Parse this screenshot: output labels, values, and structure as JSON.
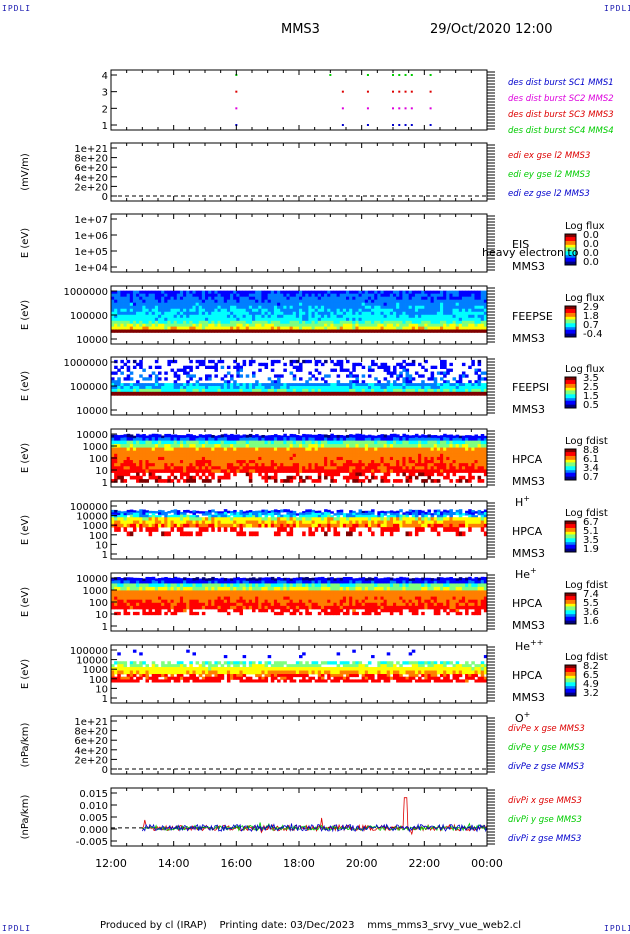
{
  "header": {
    "corner_label": "IPDLI",
    "spacecraft": "MMS3",
    "datetime": "29/Oct/2020 12:00"
  },
  "footer": {
    "produced_by": "Produced by cl (IRAP)",
    "printing_date": "Printing date: 03/Dec/2023",
    "script": "mms_mms3_srvy_vue_web2.cl"
  },
  "colors": {
    "red": "#dd0000",
    "green": "#00cc00",
    "blue": "#0000cc",
    "magenta": "#dd00dd",
    "colorbar": [
      "#00007f",
      "#0000ff",
      "#007fff",
      "#00ffff",
      "#7fff7f",
      "#ffff00",
      "#ff7f00",
      "#ff0000",
      "#7f0000"
    ]
  },
  "chart_data": {
    "type": "multi-panel time series and spectrograms",
    "xaxis": {
      "ticks": [
        "12:00",
        "14:00",
        "16:00",
        "18:00",
        "20:00",
        "22:00",
        "00:00"
      ],
      "range_hours": [
        12,
        24
      ]
    },
    "panels": [
      {
        "id": "burst",
        "type": "scatter",
        "ylabel": "",
        "ticks": [
          "4",
          "3",
          "2",
          "1"
        ],
        "ylim": [
          0.5,
          4.5
        ],
        "legend": [
          {
            "text": "des dist burst SC1 MMS1",
            "color": "#0000cc"
          },
          {
            "text": "des dist burst SC2 MMS2",
            "color": "#dd00dd"
          },
          {
            "text": "des dist burst SC3 MMS3",
            "color": "#dd0000"
          },
          {
            "text": "des dist burst SC4 MMS4",
            "color": "#00cc00"
          }
        ],
        "series": [
          {
            "name": "des dist burst SC1 MMS1",
            "level": 1,
            "times": [
              16.0,
              19.4,
              20.2,
              21.0,
              21.2,
              21.4,
              21.6,
              22.2
            ]
          },
          {
            "name": "des dist burst SC2 MMS2",
            "level": 2,
            "times": [
              16.0,
              19.4,
              20.2,
              21.0,
              21.2,
              21.4,
              21.6,
              22.2
            ]
          },
          {
            "name": "des dist burst SC3 MMS3",
            "level": 3,
            "times": [
              16.0,
              19.4,
              20.2,
              21.0,
              21.2,
              21.4,
              21.6,
              22.2
            ]
          },
          {
            "name": "des dist burst SC4 MMS4",
            "level": 4,
            "times": [
              16.0,
              19.0,
              20.2,
              21.0,
              21.2,
              21.4,
              21.6,
              22.2
            ]
          }
        ]
      },
      {
        "id": "edi",
        "type": "line",
        "ylabel": "(mV/m)",
        "ticks": [
          "1e+21",
          "8e+20",
          "6e+20",
          "4e+20",
          "2e+20",
          "0"
        ],
        "legend": [
          {
            "text": "edi ex gse l2 MMS3",
            "color": "#dd0000"
          },
          {
            "text": "edi ey gse l2 MMS3",
            "color": "#00cc00"
          },
          {
            "text": "edi ez gse l2 MMS3",
            "color": "#0000cc"
          }
        ]
      },
      {
        "id": "eis",
        "type": "heatmap",
        "ylabel": "E (eV)",
        "ticks": [
          "1e+07",
          "1e+06",
          "1e+05",
          "1e+04"
        ],
        "instrument": "EIS",
        "spacecraft": "MMS3",
        "overlay_text": "heavy electron to",
        "cbar_title": "Log flux",
        "cbar_ticks": [
          "0.0",
          "0.0",
          "0.0",
          "0.0"
        ]
      },
      {
        "id": "feepse",
        "type": "heatmap",
        "ylabel": "E (eV)",
        "ticks": [
          "1000000",
          "100000",
          "10000"
        ],
        "instrument": "FEEPSE",
        "spacecraft": "MMS3",
        "cbar_title": "Log flux",
        "cbar_ticks": [
          "2.9",
          "1.8",
          "0.7",
          "-0.4"
        ]
      },
      {
        "id": "feepsi",
        "type": "heatmap",
        "ylabel": "E (eV)",
        "ticks": [
          "1000000",
          "100000",
          "10000"
        ],
        "instrument": "FEEPSI",
        "spacecraft": "MMS3",
        "cbar_title": "Log flux",
        "cbar_ticks": [
          "3.5",
          "2.5",
          "1.5",
          "0.5"
        ]
      },
      {
        "id": "hpca_h",
        "type": "heatmap",
        "ylabel": "E (eV)",
        "ticks": [
          "10000",
          "1000",
          "100",
          "10",
          "1"
        ],
        "instrument": "HPCA",
        "spacecraft": "MMS3",
        "species": "H",
        "species_sup": "+",
        "cbar_title": "Log fdist",
        "cbar_ticks": [
          "8.8",
          "6.1",
          "3.4",
          "0.7"
        ]
      },
      {
        "id": "hpca_he1",
        "type": "heatmap",
        "ylabel": "E (eV)",
        "ticks": [
          "100000",
          "10000",
          "1000",
          "100",
          "10",
          "1"
        ],
        "instrument": "HPCA",
        "spacecraft": "MMS3",
        "species": "He",
        "species_sup": "+",
        "cbar_title": "Log fdist",
        "cbar_ticks": [
          "6.7",
          "5.1",
          "3.5",
          "1.9"
        ]
      },
      {
        "id": "hpca_he2",
        "type": "heatmap",
        "ylabel": "E (eV)",
        "ticks": [
          "10000",
          "1000",
          "100",
          "10",
          "1"
        ],
        "instrument": "HPCA",
        "spacecraft": "MMS3",
        "species": "He",
        "species_sup": "++",
        "cbar_title": "Log fdist",
        "cbar_ticks": [
          "7.4",
          "5.5",
          "3.6",
          "1.6"
        ]
      },
      {
        "id": "hpca_o",
        "type": "heatmap",
        "ylabel": "E (eV)",
        "ticks": [
          "100000",
          "10000",
          "1000",
          "100",
          "10",
          "1"
        ],
        "instrument": "HPCA",
        "spacecraft": "MMS3",
        "species": "O",
        "species_sup": "+",
        "cbar_title": "Log fdist",
        "cbar_ticks": [
          "8.2",
          "6.5",
          "4.9",
          "3.2"
        ]
      },
      {
        "id": "divpe",
        "type": "line",
        "ylabel": "(nPa/km)",
        "ticks": [
          "1e+21",
          "8e+20",
          "6e+20",
          "4e+20",
          "2e+20",
          "0"
        ],
        "legend": [
          {
            "text": "divPe x gse MMS3",
            "color": "#dd0000"
          },
          {
            "text": "divPe y gse MMS3",
            "color": "#00cc00"
          },
          {
            "text": "divPe z gse MMS3",
            "color": "#0000cc"
          }
        ]
      },
      {
        "id": "divpi",
        "type": "line",
        "ylabel": "(nPa/km)",
        "ticks": [
          "0.015",
          "0.010",
          "0.005",
          "0.000",
          "-0.005"
        ],
        "ylim": [
          -0.0075,
          0.0165
        ],
        "data_start_hour": 13.0,
        "legend": [
          {
            "text": "divPi x gse MMS3",
            "color": "#dd0000"
          },
          {
            "text": "divPi y gse MMS3",
            "color": "#00cc00"
          },
          {
            "text": "divPi z gse MMS3",
            "color": "#0000cc"
          }
        ]
      }
    ]
  }
}
